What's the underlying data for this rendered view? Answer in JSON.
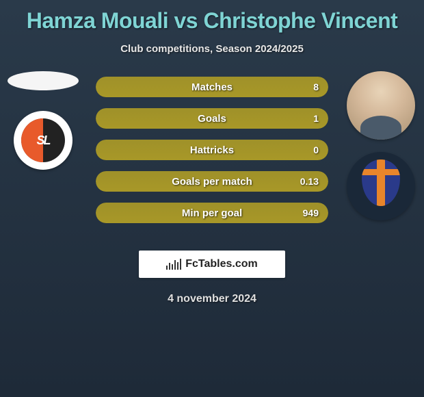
{
  "header": {
    "title": "Hamza Mouali vs Christophe Vincent",
    "subtitle": "Club competitions, Season 2024/2025",
    "title_color": "#7fd4d4"
  },
  "stats": [
    {
      "label": "Matches",
      "value": "8",
      "fill_pct": 100
    },
    {
      "label": "Goals",
      "value": "1",
      "fill_pct": 100
    },
    {
      "label": "Hattricks",
      "value": "0",
      "fill_pct": 100
    },
    {
      "label": "Goals per match",
      "value": "0.13",
      "fill_pct": 100
    },
    {
      "label": "Min per goal",
      "value": "949",
      "fill_pct": 100
    }
  ],
  "bar_color": "#a89828",
  "branding": {
    "text": "FcTables.com"
  },
  "date": "4 november 2024",
  "badges": {
    "left_text": "SL"
  }
}
